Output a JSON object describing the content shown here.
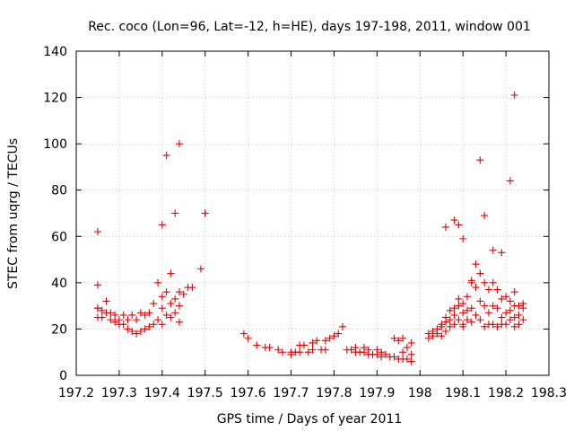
{
  "chart_data": {
    "type": "scatter",
    "title": "Rec. coco (Lon=96, Lat=-12, h=HE), days 197-198, 2011, window 001",
    "xlabel": "GPS time / Days of year 2011",
    "ylabel": "STEC from uqrg / TECUs",
    "xlim": [
      197.2,
      198.3
    ],
    "ylim": [
      0,
      140
    ],
    "xticks": [
      197.2,
      197.3,
      197.4,
      197.5,
      197.6,
      197.7,
      197.8,
      197.9,
      198,
      198.1,
      198.2,
      198.3
    ],
    "xtick_labels": [
      "197.2",
      "197.3",
      "197.4",
      "197.5",
      "197.6",
      "197.7",
      "197.8",
      "197.9",
      "198",
      "198.1",
      "198.2",
      "198.3"
    ],
    "yticks": [
      0,
      20,
      40,
      60,
      80,
      100,
      120,
      140
    ],
    "ytick_labels": [
      "0",
      "20",
      "40",
      "60",
      "80",
      "100",
      "120",
      "140"
    ],
    "grid": true,
    "marker": "plus",
    "color": "#e00000",
    "series": [
      {
        "x": [
          197.25,
          197.25,
          197.25,
          197.25,
          197.26,
          197.26,
          197.27,
          197.27,
          197.28,
          197.28,
          197.29,
          197.29,
          197.3,
          197.3,
          197.31,
          197.31,
          197.32,
          197.32,
          197.33,
          197.33,
          197.34,
          197.34,
          197.35,
          197.35,
          197.36,
          197.36,
          197.37,
          197.37,
          197.38,
          197.38,
          197.39,
          197.39,
          197.4,
          197.4,
          197.4,
          197.41,
          197.41,
          197.42,
          197.42,
          197.43,
          197.43,
          197.44,
          197.44,
          197.44,
          197.45,
          197.46,
          197.47,
          197.49,
          197.5,
          197.59,
          197.6,
          197.62,
          197.64,
          197.65,
          197.67,
          197.68,
          197.7,
          197.7,
          197.71,
          197.72,
          197.72,
          197.73,
          197.74,
          197.75,
          197.75,
          197.76,
          197.77,
          197.78,
          197.78,
          197.79,
          197.8,
          197.81,
          197.82,
          197.83,
          197.84,
          197.85,
          197.85,
          197.86,
          197.87,
          197.87,
          197.88,
          197.88,
          197.89,
          197.9,
          197.9,
          197.91,
          197.91,
          197.92,
          197.93,
          197.94,
          197.94,
          197.95,
          197.95,
          197.96,
          197.96,
          197.96,
          197.97,
          197.97,
          197.98,
          197.98,
          197.98,
          198.02,
          198.02,
          198.03,
          198.03,
          198.04,
          198.04,
          198.05,
          198.05,
          198.05,
          198.06,
          198.06,
          198.06,
          198.07,
          198.07,
          198.07,
          198.08,
          198.08,
          198.08,
          198.09,
          198.09,
          198.09,
          198.1,
          198.1,
          198.1,
          198.1,
          198.11,
          198.11,
          198.11,
          198.12,
          198.12,
          198.12,
          198.13,
          198.13,
          198.13,
          198.14,
          198.14,
          198.14,
          198.15,
          198.15,
          198.15,
          198.16,
          198.16,
          198.16,
          198.17,
          198.17,
          198.17,
          198.18,
          198.18,
          198.18,
          198.19,
          198.19,
          198.19,
          198.2,
          198.2,
          198.2,
          198.21,
          198.21,
          198.21,
          198.22,
          198.22,
          198.22,
          198.22,
          198.23,
          198.23,
          198.23,
          198.24,
          198.24,
          198.24,
          197.25,
          197.41,
          197.43,
          197.44,
          197.5,
          197.42,
          197.4,
          198.06,
          198.08,
          198.09,
          198.1,
          198.12,
          198.14,
          198.15,
          198.17,
          198.19,
          198.21,
          198.22
        ],
        "y": [
          62,
          39,
          29,
          25,
          28,
          25,
          32,
          27,
          24,
          27,
          23,
          26,
          24,
          22,
          26,
          22,
          24,
          20,
          26,
          19,
          24,
          18,
          27,
          19,
          26,
          20,
          27,
          21,
          31,
          22,
          40,
          24,
          34,
          29,
          22,
          36,
          26,
          31,
          25,
          33,
          27,
          36,
          23,
          30,
          35,
          38,
          38,
          46,
          70,
          18,
          16,
          13,
          12,
          12,
          11,
          10,
          10,
          9,
          10,
          13,
          10,
          13,
          10,
          14,
          11,
          15,
          11,
          15,
          11,
          16,
          17,
          18,
          21,
          11,
          11,
          10,
          12,
          10,
          10,
          12,
          9,
          11,
          9,
          9,
          11,
          8,
          10,
          9,
          8,
          8,
          16,
          7,
          15,
          7,
          10,
          16,
          7,
          12,
          6,
          9,
          14,
          18,
          16,
          17,
          19,
          20,
          18,
          21,
          17,
          22,
          23,
          19,
          25,
          24,
          21,
          28,
          29,
          22,
          26,
          30,
          24,
          33,
          31,
          22,
          27,
          21,
          28,
          24,
          34,
          29,
          23,
          40,
          48,
          26,
          38,
          44,
          32,
          24,
          40,
          30,
          21,
          37,
          27,
          22,
          40,
          30,
          22,
          37,
          29,
          21,
          33,
          25,
          22,
          34,
          27,
          22,
          32,
          28,
          24,
          36,
          30,
          25,
          21,
          30,
          26,
          22,
          31,
          29,
          24,
          29,
          95,
          70,
          100,
          70,
          44,
          65,
          64,
          67,
          65,
          59,
          41,
          93,
          69,
          54,
          53,
          84,
          121
        ]
      }
    ]
  }
}
